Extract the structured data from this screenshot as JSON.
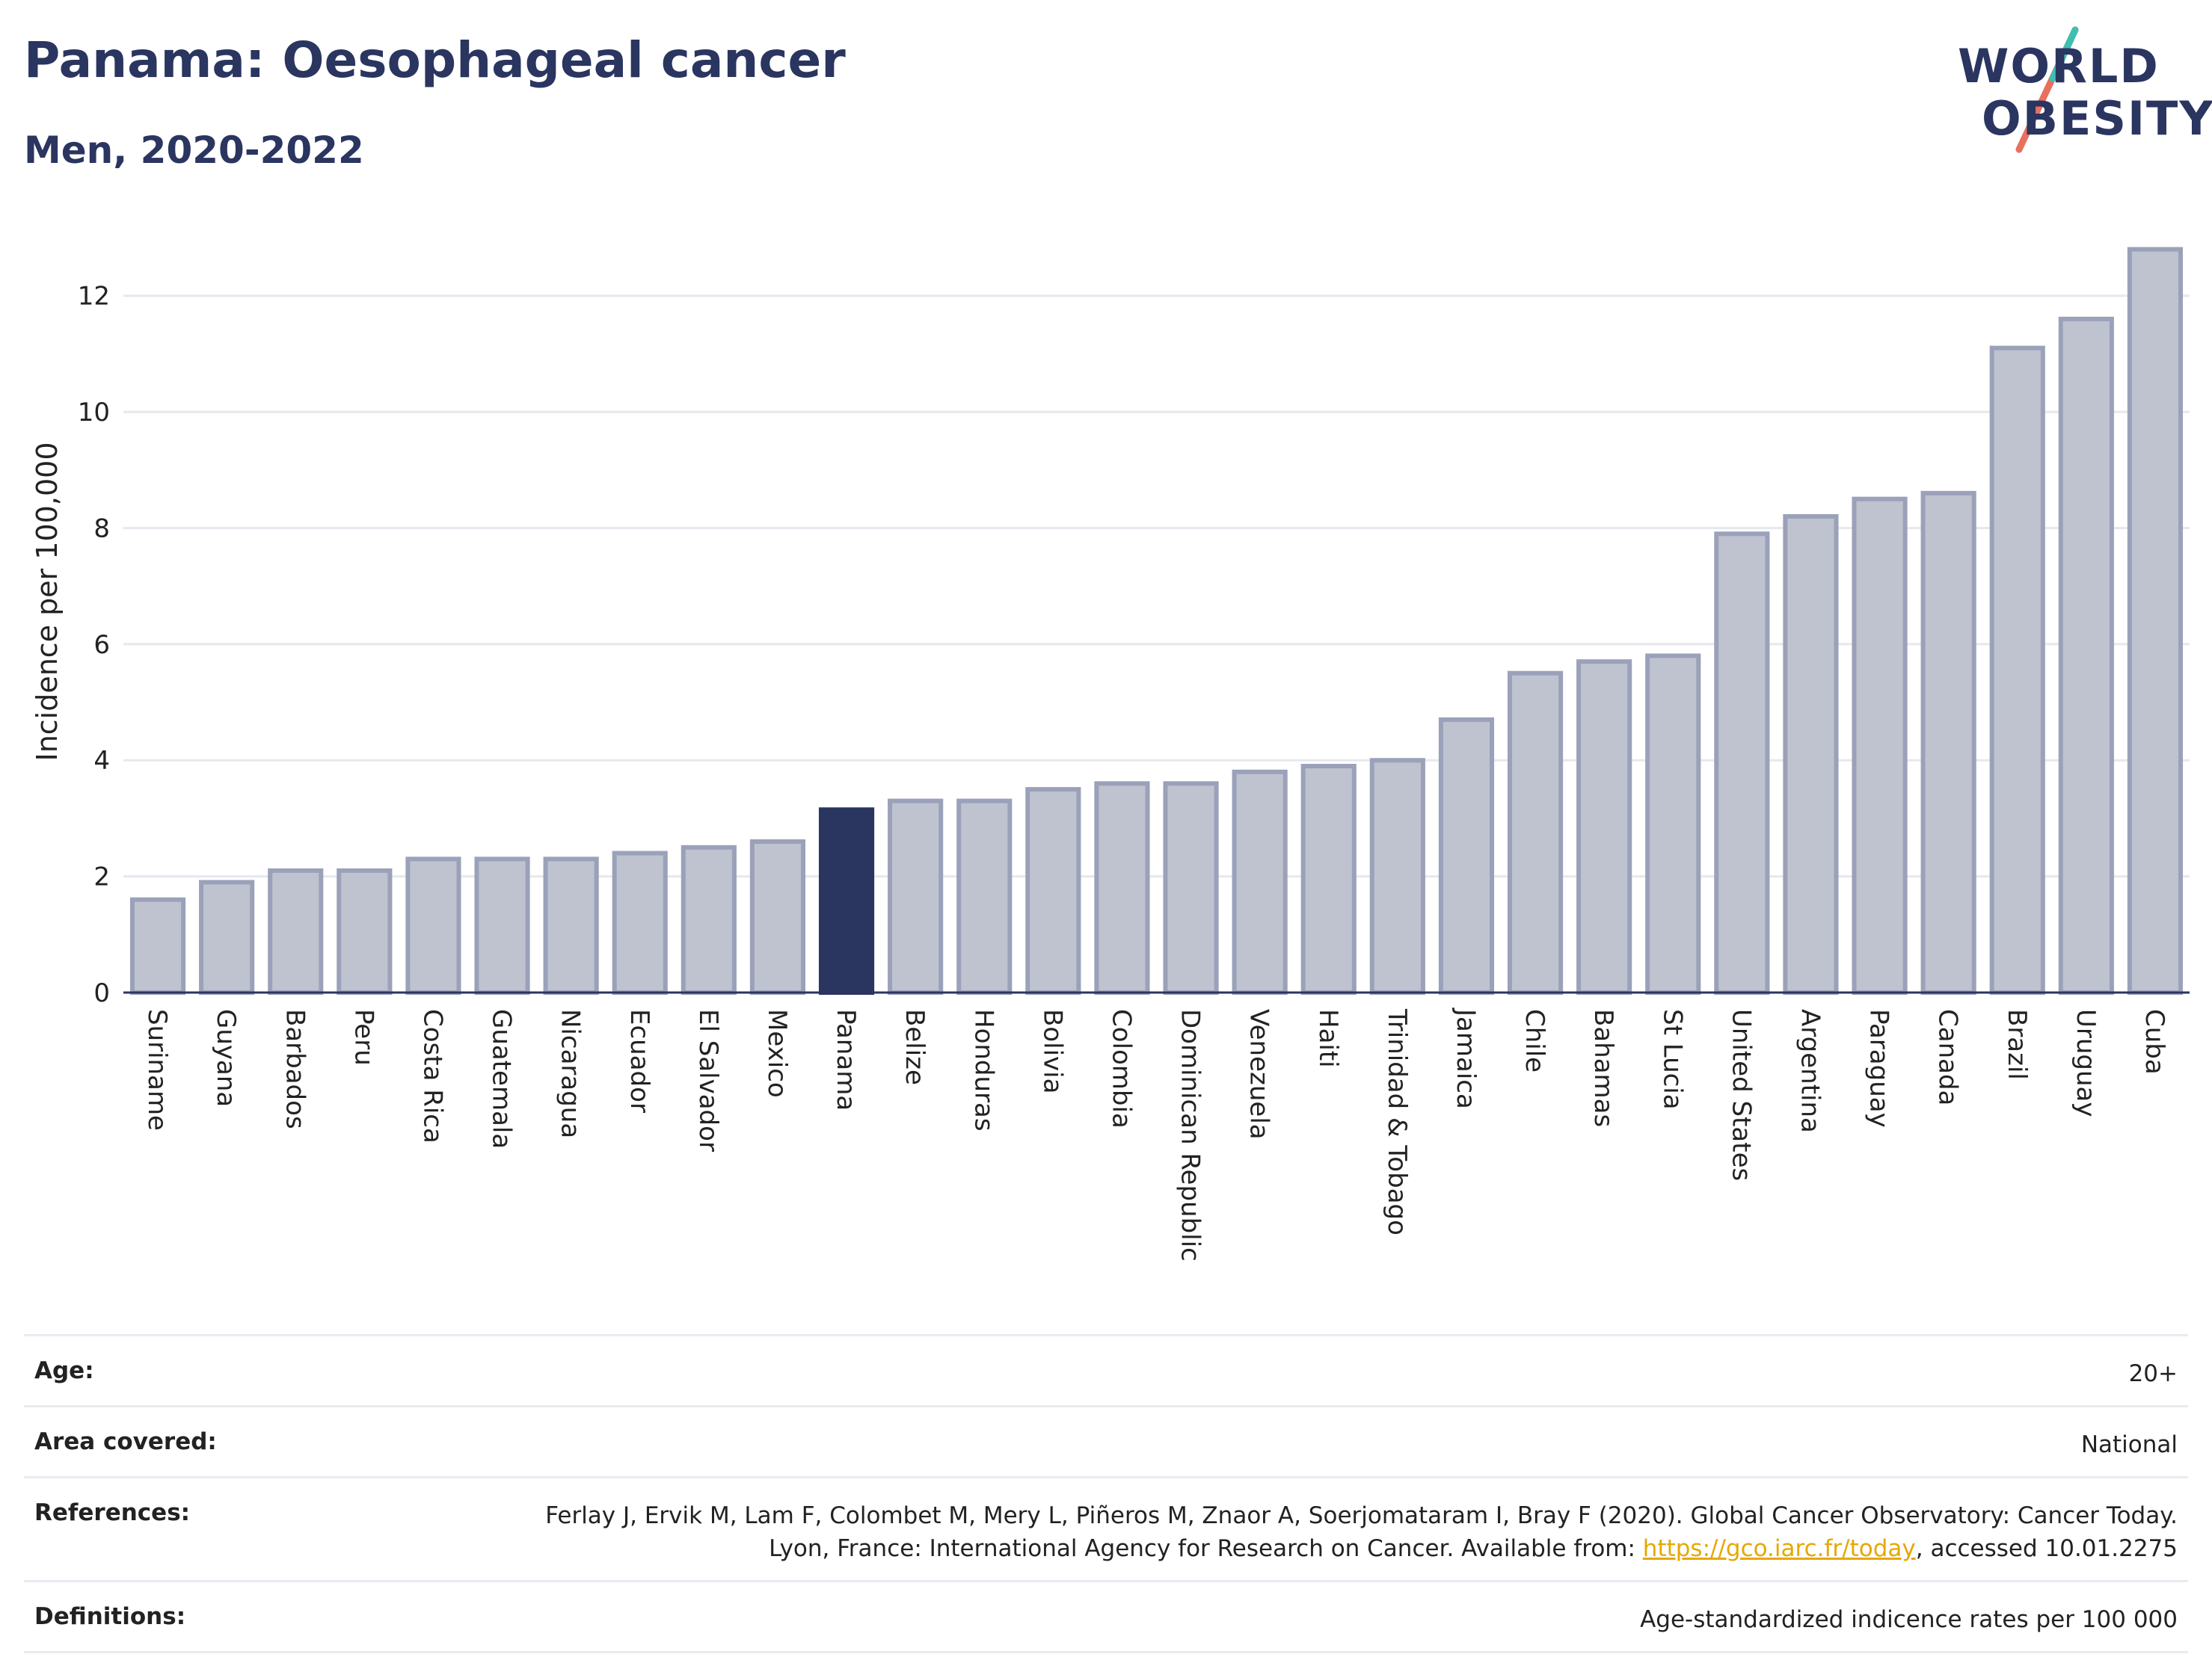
{
  "header": {
    "title": "Panama: Oesophageal cancer",
    "subtitle": "Men, 2020-2022"
  },
  "logo": {
    "line1": "WORLD",
    "line2": "OBESITY"
  },
  "chart_data": {
    "type": "bar",
    "ylabel": "Incidence per 100,000",
    "ylim": [
      0,
      13
    ],
    "yticks": [
      0,
      2,
      4,
      6,
      8,
      10,
      12
    ],
    "grid": true,
    "highlight": "Panama",
    "colors": {
      "bar": "#bfc3d0",
      "bar_edge": "#9aa1b9",
      "highlight": "#2a3560",
      "grid": "#e6e8ee"
    },
    "categories": [
      "Suriname",
      "Guyana",
      "Barbados",
      "Peru",
      "Costa Rica",
      "Guatemala",
      "Nicaragua",
      "Ecuador",
      "El Salvador",
      "Mexico",
      "Panama",
      "Belize",
      "Honduras",
      "Bolivia",
      "Colombia",
      "Dominican Republic",
      "Venezuela",
      "Haiti",
      "Trinidad & Tobago",
      "Jamaica",
      "Chile",
      "Bahamas",
      "St Lucia",
      "United States",
      "Argentina",
      "Paraguay",
      "Canada",
      "Brazil",
      "Uruguay",
      "Cuba"
    ],
    "values": [
      1.6,
      1.9,
      2.1,
      2.1,
      2.3,
      2.3,
      2.3,
      2.4,
      2.5,
      2.6,
      3.15,
      3.3,
      3.3,
      3.5,
      3.6,
      3.6,
      3.8,
      3.9,
      4.0,
      4.7,
      5.5,
      5.7,
      5.8,
      7.9,
      8.2,
      8.5,
      8.6,
      11.1,
      11.6,
      12.8
    ]
  },
  "info": {
    "age_label": "Age:",
    "age_value": "20+",
    "area_label": "Area covered:",
    "area_value": "National",
    "ref_label": "References:",
    "ref_text_1": "Ferlay J, Ervik M, Lam F, Colombet M, Mery L, Piñeros M, Znaor A, Soerjomataram I, Bray F (2020). Global Cancer Observatory: Cancer Today. Lyon, France: International Agency for Research on Cancer. Available from: ",
    "ref_link": "https://gco.iarc.fr/today",
    "ref_text_2": ", accessed 10.01.2275",
    "def_label": "Definitions:",
    "def_value": "Age-standardized indicence rates per 100 000"
  }
}
